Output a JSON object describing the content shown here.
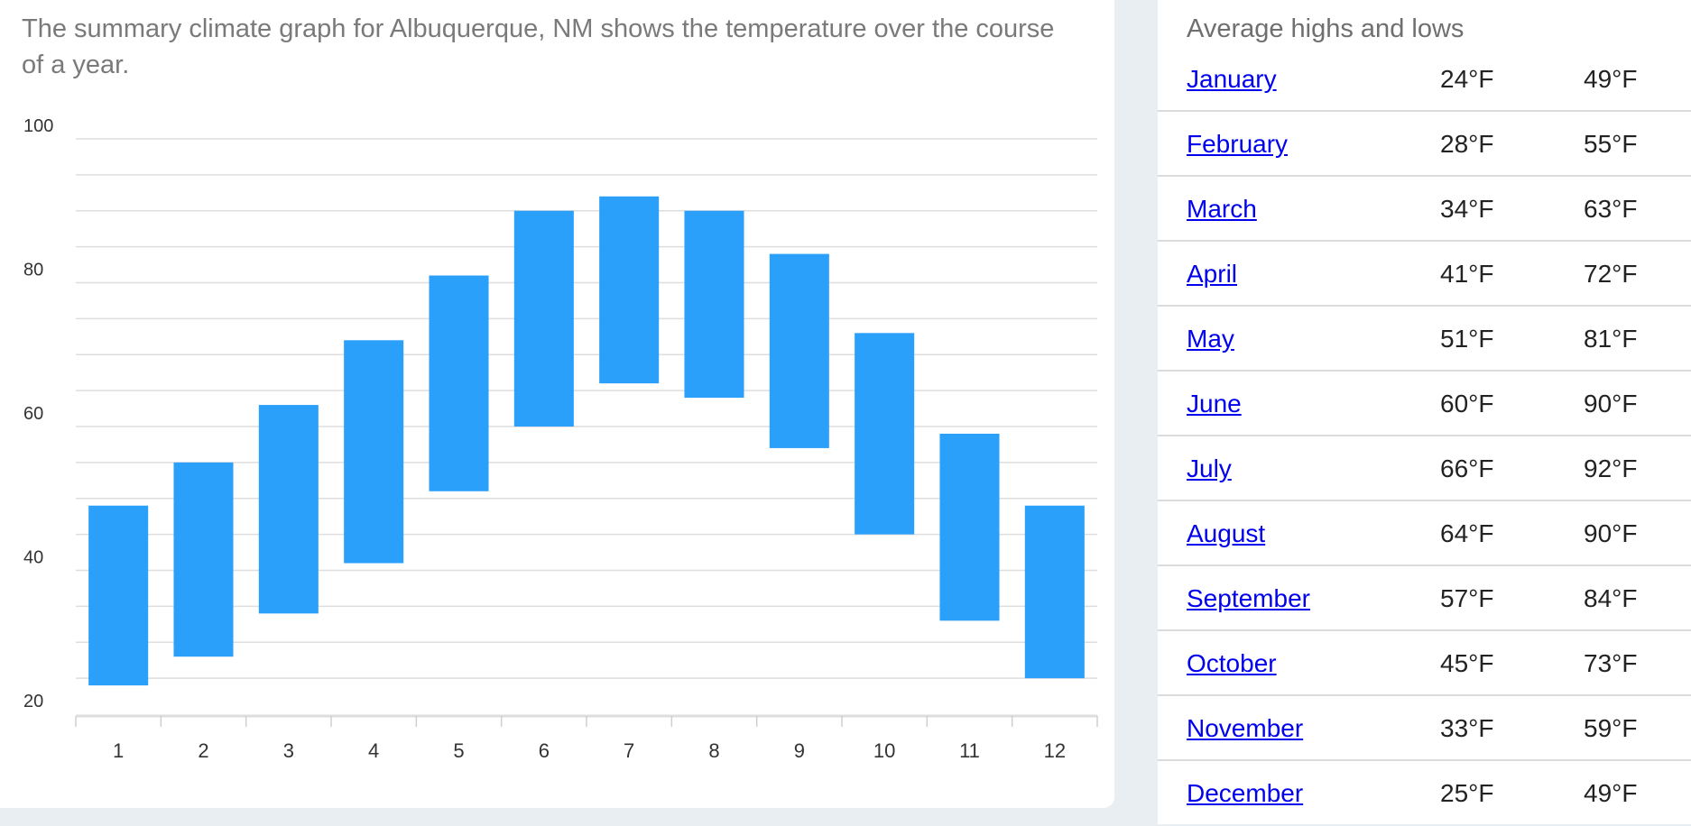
{
  "description": "The summary climate graph for Albuquerque, NM shows the temperature over the course of a year.",
  "colors": {
    "bar": "#2aa0fb",
    "grid": "#dedede",
    "link": "#0000ee"
  },
  "table": {
    "title": "Average highs and lows",
    "rows": [
      {
        "month": "January",
        "low": "24°F",
        "high": "49°F"
      },
      {
        "month": "February",
        "low": "28°F",
        "high": "55°F"
      },
      {
        "month": "March",
        "low": "34°F",
        "high": "63°F"
      },
      {
        "month": "April",
        "low": "41°F",
        "high": "72°F"
      },
      {
        "month": "May",
        "low": "51°F",
        "high": "81°F"
      },
      {
        "month": "June",
        "low": "60°F",
        "high": "90°F"
      },
      {
        "month": "July",
        "low": "66°F",
        "high": "92°F"
      },
      {
        "month": "August",
        "low": "64°F",
        "high": "90°F"
      },
      {
        "month": "September",
        "low": "57°F",
        "high": "84°F"
      },
      {
        "month": "October",
        "low": "45°F",
        "high": "73°F"
      },
      {
        "month": "November",
        "low": "33°F",
        "high": "59°F"
      },
      {
        "month": "December",
        "low": "25°F",
        "high": "49°F"
      }
    ]
  },
  "chart_data": {
    "type": "bar",
    "categories": [
      "1",
      "2",
      "3",
      "4",
      "5",
      "6",
      "7",
      "8",
      "9",
      "10",
      "11",
      "12"
    ],
    "low": [
      24,
      28,
      34,
      41,
      51,
      60,
      66,
      64,
      57,
      45,
      33,
      25
    ],
    "high": [
      49,
      55,
      63,
      72,
      81,
      90,
      92,
      90,
      84,
      73,
      59,
      49
    ],
    "ylim": [
      20,
      100
    ],
    "yticks": [
      "20",
      "40",
      "60",
      "80",
      "100"
    ],
    "grid": true
  }
}
